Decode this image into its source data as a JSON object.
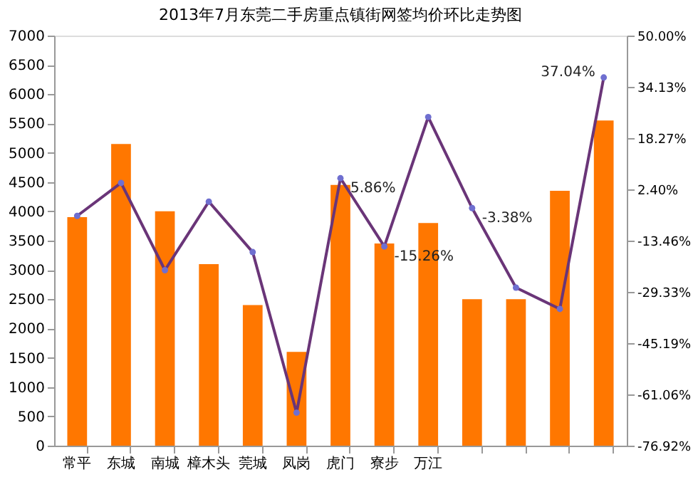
{
  "chart_data": {
    "type": "bar",
    "title": "2013年7月东莞二手房重点镇街网签均价环比走势图",
    "categories": [
      "常平",
      "东城",
      "南城",
      "樟木头",
      "莞城",
      "凤岗",
      "虎门",
      "寮步",
      "万江",
      null,
      null,
      null,
      null
    ],
    "series": [
      {
        "color": "#ff7700",
        "values": [
          3900,
          5150,
          4000,
          3100,
          2400,
          1600,
          4450,
          3450,
          3800,
          2500,
          2500,
          4350,
          5550
        ]
      },
      {
        "type": "line",
        "axis": "y2",
        "color": "#6a3578",
        "marker": "circle",
        "line_style": "solid",
        "values": [
          -5.8,
          4.4,
          -22.6,
          -1.4,
          -17,
          -66.7,
          5.86,
          -15.26,
          24.8,
          -3.38,
          -28,
          -34.6,
          37.04
        ],
        "value_labels": [
          null,
          null,
          null,
          null,
          null,
          null,
          "5.86%",
          "-15.26%",
          null,
          "-3.38%",
          null,
          null,
          "37.04%"
        ]
      }
    ],
    "ylim": [
      0,
      7000
    ],
    "yticks": [
      0,
      500,
      1000,
      1500,
      2000,
      2500,
      3000,
      3500,
      4000,
      4500,
      5000,
      5500,
      6000,
      6500,
      7000
    ],
    "y2lim": [
      -76.92,
      50
    ],
    "y2ticks": [
      {
        "value": -76.92,
        "label": "-76.92%"
      },
      {
        "value": -61.06,
        "label": "-61.06%"
      },
      {
        "value": -45.19,
        "label": "-45.19%"
      },
      {
        "value": -29.33,
        "label": "-29.33%"
      },
      {
        "value": -13.46,
        "label": "-13.46%"
      },
      {
        "value": 2.4,
        "label": "2.40%"
      },
      {
        "value": 18.27,
        "label": "18.27%"
      },
      {
        "value": 34.13,
        "label": "34.13%"
      },
      {
        "value": 50,
        "label": "50.00%"
      }
    ],
    "grid": false
  }
}
